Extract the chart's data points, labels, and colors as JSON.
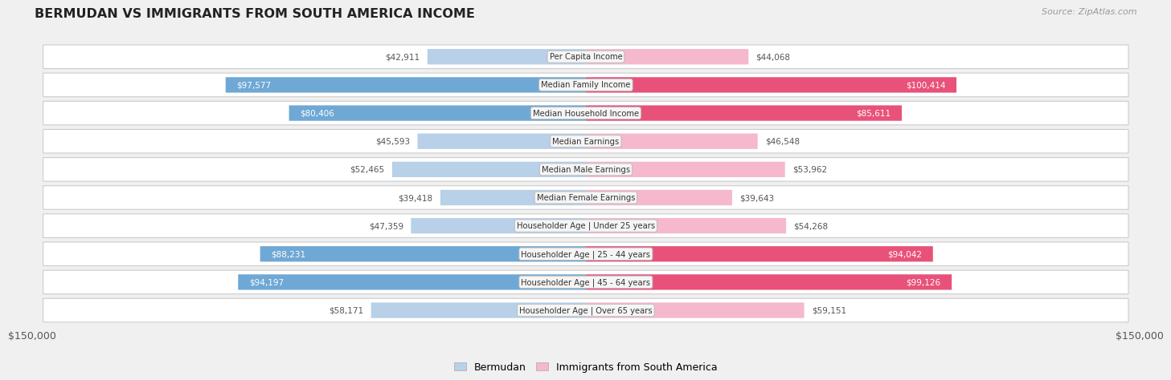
{
  "title": "BERMUDAN VS IMMIGRANTS FROM SOUTH AMERICA INCOME",
  "source": "Source: ZipAtlas.com",
  "categories": [
    "Per Capita Income",
    "Median Family Income",
    "Median Household Income",
    "Median Earnings",
    "Median Male Earnings",
    "Median Female Earnings",
    "Householder Age | Under 25 years",
    "Householder Age | 25 - 44 years",
    "Householder Age | 45 - 64 years",
    "Householder Age | Over 65 years"
  ],
  "bermudan_values": [
    42911,
    97577,
    80406,
    45593,
    52465,
    39418,
    47359,
    88231,
    94197,
    58171
  ],
  "immigrant_values": [
    44068,
    100414,
    85611,
    46548,
    53962,
    39643,
    54268,
    94042,
    99126,
    59151
  ],
  "bermudan_color_light": "#b8d0e8",
  "bermudan_color_dark": "#6fa8d4",
  "immigrant_color_light": "#f5b8cc",
  "immigrant_color_dark": "#e8527a",
  "bermudan_label": "Bermudan",
  "immigrant_label": "Immigrants from South America",
  "max_value": 150000,
  "axis_label": "$150,000",
  "bg_color": "#f0f0f0",
  "row_bg_color": "#ffffff",
  "row_border_color": "#cccccc",
  "label_box_color": "#f5f5f5",
  "label_box_edge": "#bbbbbb",
  "inside_text_color": "#ffffff",
  "outside_text_color": "#555555",
  "text_threshold": 65000
}
